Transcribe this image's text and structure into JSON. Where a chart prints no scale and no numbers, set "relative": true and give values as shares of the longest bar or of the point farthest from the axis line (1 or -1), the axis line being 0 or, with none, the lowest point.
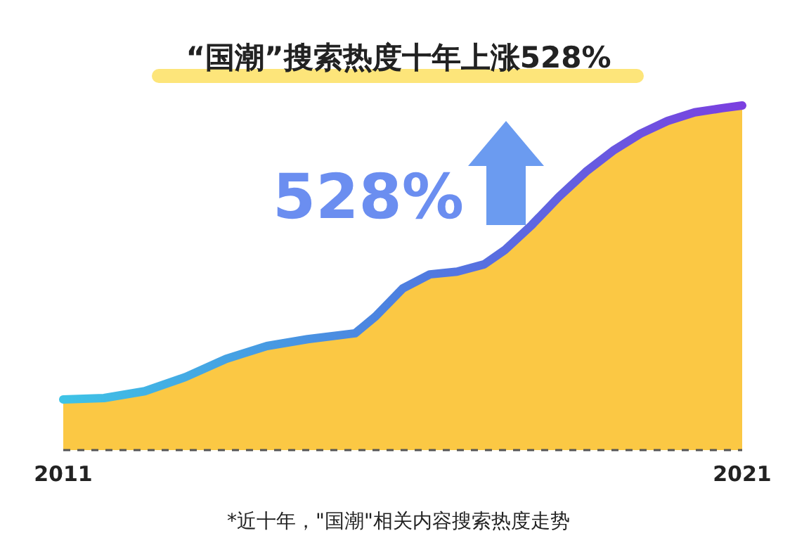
{
  "chart_data": {
    "type": "area",
    "title": "“国潮”搜索热度十年上涨528%",
    "relative": true,
    "x": [
      2011,
      2011.6,
      2012.2,
      2012.8,
      2013.4,
      2014.0,
      2014.6,
      2015.3,
      2015.6,
      2016.0,
      2016.4,
      2016.8,
      2017.2,
      2017.5,
      2017.9,
      2018.3,
      2018.7,
      2019.1,
      2019.5,
      2019.9,
      2020.3,
      2020.7,
      2021
    ],
    "xlim": [
      2011,
      2021
    ],
    "xticks": [
      2011,
      2021
    ],
    "series": [
      {
        "color": "#fbc844",
        "values": [
          0.147,
          0.151,
          0.171,
          0.212,
          0.265,
          0.302,
          0.322,
          0.339,
          0.388,
          0.469,
          0.51,
          0.518,
          0.539,
          0.58,
          0.653,
          0.735,
          0.808,
          0.869,
          0.918,
          0.955,
          0.98,
          0.992,
          1
        ]
      }
    ],
    "annotations": [
      "528%",
      "*近十年，\"国潮\"相关内容搜索热度走势"
    ]
  }
}
